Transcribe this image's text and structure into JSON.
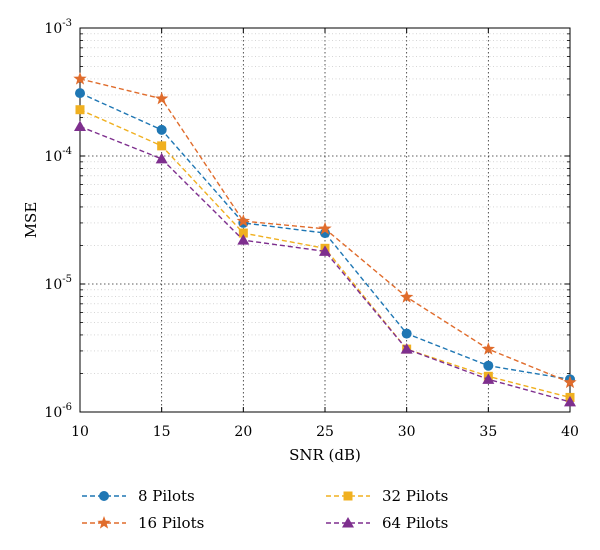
{
  "chart_data": {
    "type": "line",
    "xlabel": "SNR (dB)",
    "ylabel": "MSE",
    "yscale": "log",
    "xlim": [
      10,
      40
    ],
    "ylim": [
      1e-06,
      0.001
    ],
    "x_ticks": [
      10,
      15,
      20,
      25,
      30,
      35,
      40
    ],
    "x_tick_labels": [
      "10",
      "15",
      "20",
      "25",
      "30",
      "35",
      "40"
    ],
    "y_ticks": [
      1e-06,
      1e-05,
      0.0001,
      0.001
    ],
    "y_tick_labels": [
      {
        "base": "10",
        "exp": "-6"
      },
      {
        "base": "10",
        "exp": "-5"
      },
      {
        "base": "10",
        "exp": "-4"
      },
      {
        "base": "10",
        "exp": "-3"
      }
    ],
    "grid": true,
    "legend_position": "bottom",
    "x": [
      10,
      15,
      20,
      25,
      30,
      35,
      40
    ],
    "series": [
      {
        "name": "8 Pilots",
        "marker": "circle",
        "color": "#1f77b4",
        "values": [
          0.00031,
          0.00016,
          3e-05,
          2.5e-05,
          4.1e-06,
          2.3e-06,
          1.8e-06
        ]
      },
      {
        "name": "16 Pilots",
        "marker": "star",
        "color": "#e06c2c",
        "values": [
          0.0004,
          0.00028,
          3.1e-05,
          2.7e-05,
          7.9e-06,
          3.1e-06,
          1.7e-06
        ]
      },
      {
        "name": "32 Pilots",
        "marker": "square",
        "color": "#f0b020",
        "values": [
          0.00023,
          0.00012,
          2.5e-05,
          1.9e-05,
          3.1e-06,
          1.9e-06,
          1.3e-06
        ]
      },
      {
        "name": "64 Pilots",
        "marker": "triangle",
        "color": "#7e2f8e",
        "values": [
          0.00017,
          9.5e-05,
          2.2e-05,
          1.8e-05,
          3.1e-06,
          1.8e-06,
          1.2e-06
        ]
      }
    ]
  }
}
